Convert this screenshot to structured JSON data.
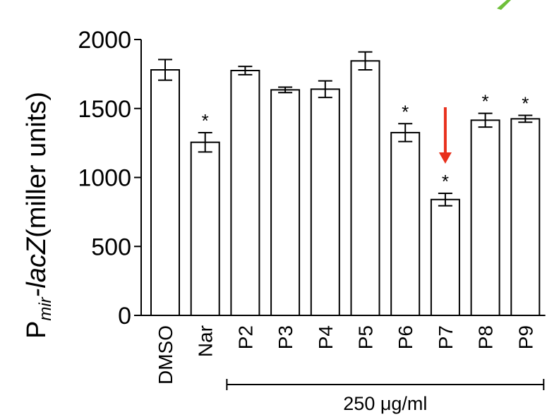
{
  "chart_data": {
    "type": "bar",
    "categories": [
      "DMSO",
      "Nar",
      "P2",
      "P3",
      "P4",
      "P5",
      "P6",
      "P7",
      "P8",
      "P9"
    ],
    "values": [
      1780,
      1255,
      1775,
      1635,
      1640,
      1845,
      1325,
      840,
      1415,
      1425
    ],
    "errors": [
      75,
      70,
      30,
      20,
      60,
      65,
      65,
      45,
      50,
      25
    ],
    "significant": [
      false,
      true,
      false,
      false,
      false,
      false,
      true,
      true,
      true,
      true
    ],
    "significance_marker": "*",
    "highlighted_category": "P7",
    "highlight_color": "#e8301c",
    "bar_fill": "#ffffff",
    "bar_stroke": "#000000",
    "ylim": [
      0,
      2000
    ],
    "yticks": [
      0,
      500,
      1000,
      1500,
      2000
    ],
    "ylabel": {
      "prefix": "P",
      "subscript": "mir",
      "gene": "-lacZ",
      "units": "(miller units)"
    },
    "xlabel": "",
    "title": "",
    "group_bracket": {
      "label": "250 μg/ml",
      "from": "P2",
      "to": "P9"
    },
    "grid": false,
    "legend": "none"
  }
}
